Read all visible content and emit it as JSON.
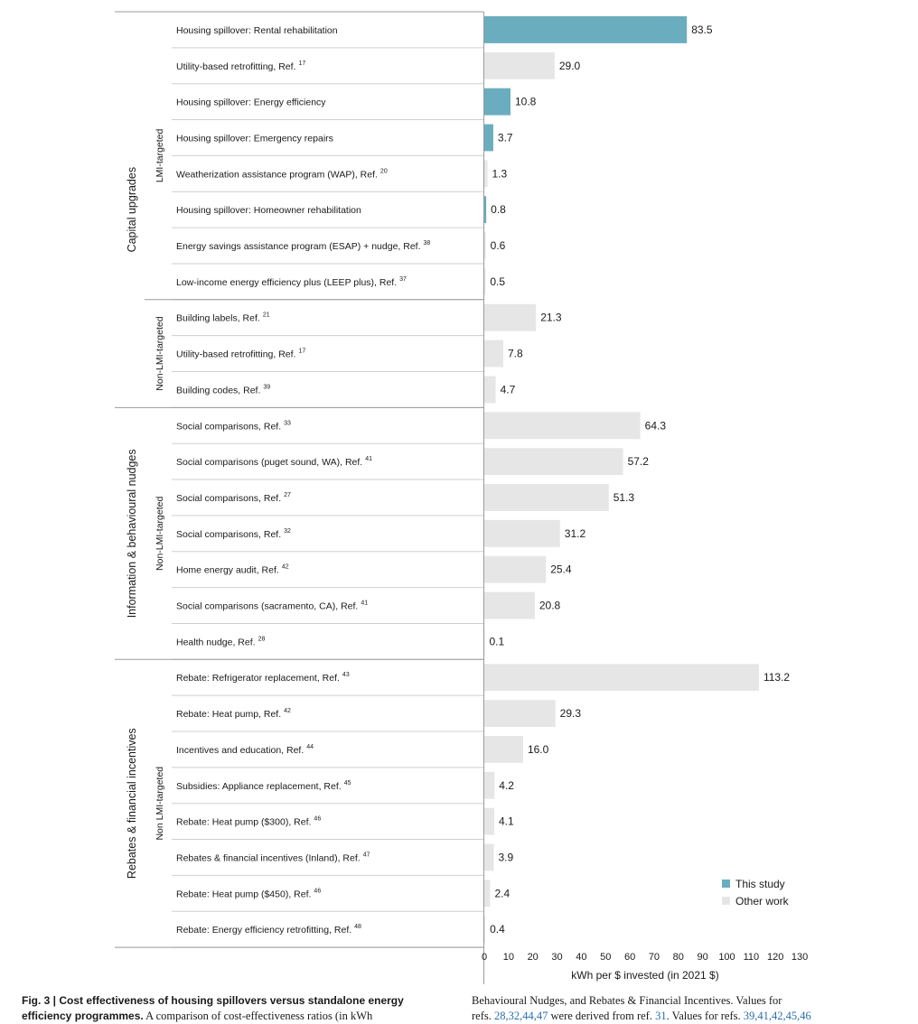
{
  "chart_data": {
    "type": "bar",
    "orientation": "horizontal",
    "xlabel": "kWh per $ invested (in 2021 $)",
    "xlim": [
      0,
      130
    ],
    "xticks": [
      0,
      10,
      20,
      30,
      40,
      50,
      60,
      70,
      80,
      90,
      100,
      110,
      120,
      130
    ],
    "grid": false,
    "legend_position": "bottom-right",
    "legend": [
      {
        "name": "This study",
        "color": "#6aadbf"
      },
      {
        "name": "Other work",
        "color": "#e6e6e6"
      }
    ],
    "colors": {
      "this_study": "#6aadbf",
      "other_work": "#e6e6e6"
    },
    "groups": [
      {
        "name": "Capital upgrades",
        "subgroups": [
          {
            "name": "LMI-targeted",
            "bars": [
              {
                "label": "Housing spillover: Rental rehabilitation",
                "ref": "",
                "value": 83.5,
                "value_label": "83.5",
                "source": "this_study"
              },
              {
                "label": "Utility-based retrofitting, Ref.",
                "ref": "17",
                "value": 29.0,
                "value_label": "29.0",
                "source": "other_work"
              },
              {
                "label": "Housing spillover: Energy efficiency",
                "ref": "",
                "value": 10.8,
                "value_label": "10.8",
                "source": "this_study"
              },
              {
                "label": "Housing spillover: Emergency repairs",
                "ref": "",
                "value": 3.7,
                "value_label": "3.7",
                "source": "this_study"
              },
              {
                "label": "Weatherization assistance program (WAP), Ref.",
                "ref": "20",
                "value": 1.3,
                "value_label": "1.3",
                "source": "other_work"
              },
              {
                "label": "Housing spillover: Homeowner rehabilitation",
                "ref": "",
                "value": 0.8,
                "value_label": "0.8",
                "source": "this_study"
              },
              {
                "label": "Energy savings assistance program (ESAP) + nudge, Ref.",
                "ref": "38",
                "value": 0.6,
                "value_label": "0.6",
                "source": "other_work"
              },
              {
                "label": "Low-income energy efficiency plus (LEEP plus), Ref.",
                "ref": "37",
                "value": 0.5,
                "value_label": "0.5",
                "source": "other_work"
              }
            ]
          },
          {
            "name": "Non-LMI-targeted",
            "bars": [
              {
                "label": "Building labels, Ref.",
                "ref": "21",
                "value": 21.3,
                "value_label": "21.3",
                "source": "other_work"
              },
              {
                "label": "Utility-based retrofitting, Ref.",
                "ref": "17",
                "value": 7.8,
                "value_label": "7.8",
                "source": "other_work"
              },
              {
                "label": "Building codes, Ref.",
                "ref": "39",
                "value": 4.7,
                "value_label": "4.7",
                "source": "other_work"
              }
            ]
          }
        ]
      },
      {
        "name": "Information & behavioural nudges",
        "subgroups": [
          {
            "name": "Non-LMI-targeted",
            "bars": [
              {
                "label": "Social comparisons, Ref.",
                "ref": "33",
                "value": 64.3,
                "value_label": "64.3",
                "source": "other_work"
              },
              {
                "label": "Social comparisons (puget sound, WA),  Ref.",
                "ref": "41",
                "value": 57.2,
                "value_label": "57.2",
                "source": "other_work"
              },
              {
                "label": "Social comparisons, Ref.",
                "ref": "27",
                "value": 51.3,
                "value_label": "51.3",
                "source": "other_work"
              },
              {
                "label": "Social comparisons, Ref.",
                "ref": "32",
                "value": 31.2,
                "value_label": "31.2",
                "source": "other_work"
              },
              {
                "label": "Home energy audit, Ref.",
                "ref": "42",
                "value": 25.4,
                "value_label": "25.4",
                "source": "other_work"
              },
              {
                "label": "Social comparisons (sacramento, CA), Ref.",
                "ref": "41",
                "value": 20.8,
                "value_label": "20.8",
                "source": "other_work"
              },
              {
                "label": "Health nudge, Ref.",
                "ref": "28",
                "value": 0.1,
                "value_label": "0.1",
                "source": "other_work"
              }
            ]
          }
        ]
      },
      {
        "name": "Rebates & financial incentives",
        "subgroups": [
          {
            "name": "Non LMI-targeted",
            "bars": [
              {
                "label": "Rebate: Refrigerator replacement,  Ref.",
                "ref": "43",
                "value": 113.2,
                "value_label": "113.2",
                "source": "other_work"
              },
              {
                "label": "Rebate: Heat pump,  Ref.",
                "ref": "42",
                "value": 29.3,
                "value_label": "29.3",
                "source": "other_work"
              },
              {
                "label": "Incentives and education, Ref.",
                "ref": "44",
                "value": 16.0,
                "value_label": "16.0",
                "source": "other_work"
              },
              {
                "label": "Subsidies: Appliance replacement, Ref.",
                "ref": "45",
                "value": 4.2,
                "value_label": "4.2",
                "source": "other_work"
              },
              {
                "label": "Rebate: Heat pump ($300), Ref.",
                "ref": "46",
                "value": 4.1,
                "value_label": "4.1",
                "source": "other_work"
              },
              {
                "label": "Rebates & financial incentives (Inland), Ref.",
                "ref": "47",
                "value": 3.9,
                "value_label": "3.9",
                "source": "other_work"
              },
              {
                "label": "Rebate: Heat pump ($450),  Ref.",
                "ref": "46",
                "value": 2.4,
                "value_label": "2.4",
                "source": "other_work"
              },
              {
                "label": "Rebate: Energy efficiency retrofitting, Ref.",
                "ref": "48",
                "value": 0.4,
                "value_label": "0.4",
                "source": "other_work"
              }
            ]
          }
        ]
      }
    ]
  },
  "caption": {
    "left_bold": "Fig. 3 | Cost effectiveness of housing spillovers versus standalone energy efficiency programmes.",
    "left_text": " A comparison of cost-effectiveness ratios (in kWh",
    "right_line1": "Behavioural Nudges, and Rebates & Financial Incentives. Values for",
    "right_pre": "refs. ",
    "right_refs_a": "28,32,44,47",
    "right_mid": " were derived from ref. ",
    "right_ref_b": "31",
    "right_mid2": ". Values for refs. ",
    "right_refs_c": "39,41,42,45,46"
  }
}
